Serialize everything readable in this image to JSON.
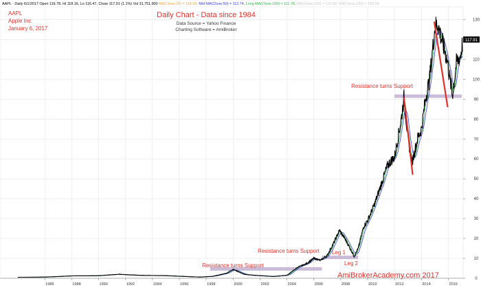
{
  "header": {
    "info_prefix": "AAPL - Daily 6/1/2017 Open 116.78, Hi 118.16, Lo 116.47, Close 117.91 (1.1%) Vol 31,751,900",
    "ma_items": [
      {
        "text": "MA(Close,20) = 114.99,",
        "color": "#f2a33a"
      },
      {
        "text": "Mid MA(Close,50) = 112.74,",
        "color": "#3a3ad6"
      },
      {
        "text": "Long MA(Close,100) = 111.78,",
        "color": "#2fb34a"
      },
      {
        "text": "MA(Close,200) = 119.99,",
        "color": "#c8c8c8"
      },
      {
        "text": "MA(Close,150) = 109.98",
        "color": "#c8c8c8"
      }
    ]
  },
  "symbol_block": {
    "ticker": "AAPL",
    "company": "Apple Inc",
    "date": "January 6, 2017"
  },
  "titles": {
    "main": "Daily Chart - Data since 1984",
    "source": "Data Source = Yahoo Finance",
    "software": "Charting Software = AmiBroker"
  },
  "watermark": "AmiBrokerAcademy.com  2017",
  "last_price": "117.91",
  "annotations": {
    "rs1": "Resistance turns Support",
    "rs2": "Resistance turns Support",
    "rs3": "Resistance turns Support",
    "leg1": "Leg 1",
    "leg2": "Leg 2"
  },
  "colors": {
    "price": "#000000",
    "ma_fast": "#2fb34a",
    "ma_mid": "#3a3ad6",
    "support_band": "#b8a6cc",
    "trend_line": "#e0302a",
    "annotation": "#e0302a",
    "grid": "#e6e6e6"
  },
  "chart_data": {
    "type": "line",
    "title": "Daily Chart - Data since 1984",
    "xlabel": "",
    "ylabel": "",
    "xlim": [
      1984,
      2017.1
    ],
    "ylim": [
      0,
      135
    ],
    "grid": true,
    "x_ticks": [
      "1986",
      "1988",
      "1990",
      "1992",
      "1994",
      "1996",
      "1998",
      "2000",
      "2002",
      "2004",
      "2006",
      "2008",
      "2010",
      "2012",
      "2014",
      "2016"
    ],
    "y_ticks": [
      0,
      10,
      20,
      30,
      40,
      50,
      60,
      70,
      80,
      90,
      100,
      110,
      120,
      130
    ],
    "series": [
      {
        "x": [
          1984.0,
          1986.0,
          1988.0,
          1990.0,
          1991.5,
          1993.0,
          1995.0,
          1997.5,
          1998.5,
          1999.5,
          2000.0,
          2000.8,
          2001.5,
          2003.0,
          2004.0,
          2004.8,
          2005.5,
          2006.0,
          2006.5,
          2007.0,
          2007.5,
          2007.9,
          2008.3,
          2008.7,
          2009.0,
          2009.3,
          2009.7,
          2010.0,
          2010.5,
          2011.0,
          2011.5,
          2012.0,
          2012.5,
          2012.7,
          2013.0,
          2013.3,
          2013.7,
          2014.0,
          2014.3,
          2014.6,
          2015.0,
          2015.2,
          2015.5,
          2015.9,
          2016.3,
          2016.6,
          2016.9,
          2017.05
        ],
        "values": [
          0.5,
          0.6,
          1.2,
          1.3,
          2.0,
          1.5,
          1.3,
          0.6,
          1.0,
          2.5,
          4.5,
          2.0,
          1.5,
          0.9,
          1.5,
          5.5,
          7.5,
          10.0,
          9.0,
          11.5,
          18.0,
          24.0,
          20.0,
          15.0,
          11.0,
          15.0,
          26.0,
          29.0,
          37.0,
          47.0,
          57.0,
          61.0,
          80.0,
          91.0,
          70.0,
          58.0,
          70.0,
          75.0,
          90.0,
          100.0,
          126.0,
          128.0,
          120.0,
          110.0,
          92.0,
          108.0,
          112.0,
          117.91
        ]
      }
    ]
  }
}
